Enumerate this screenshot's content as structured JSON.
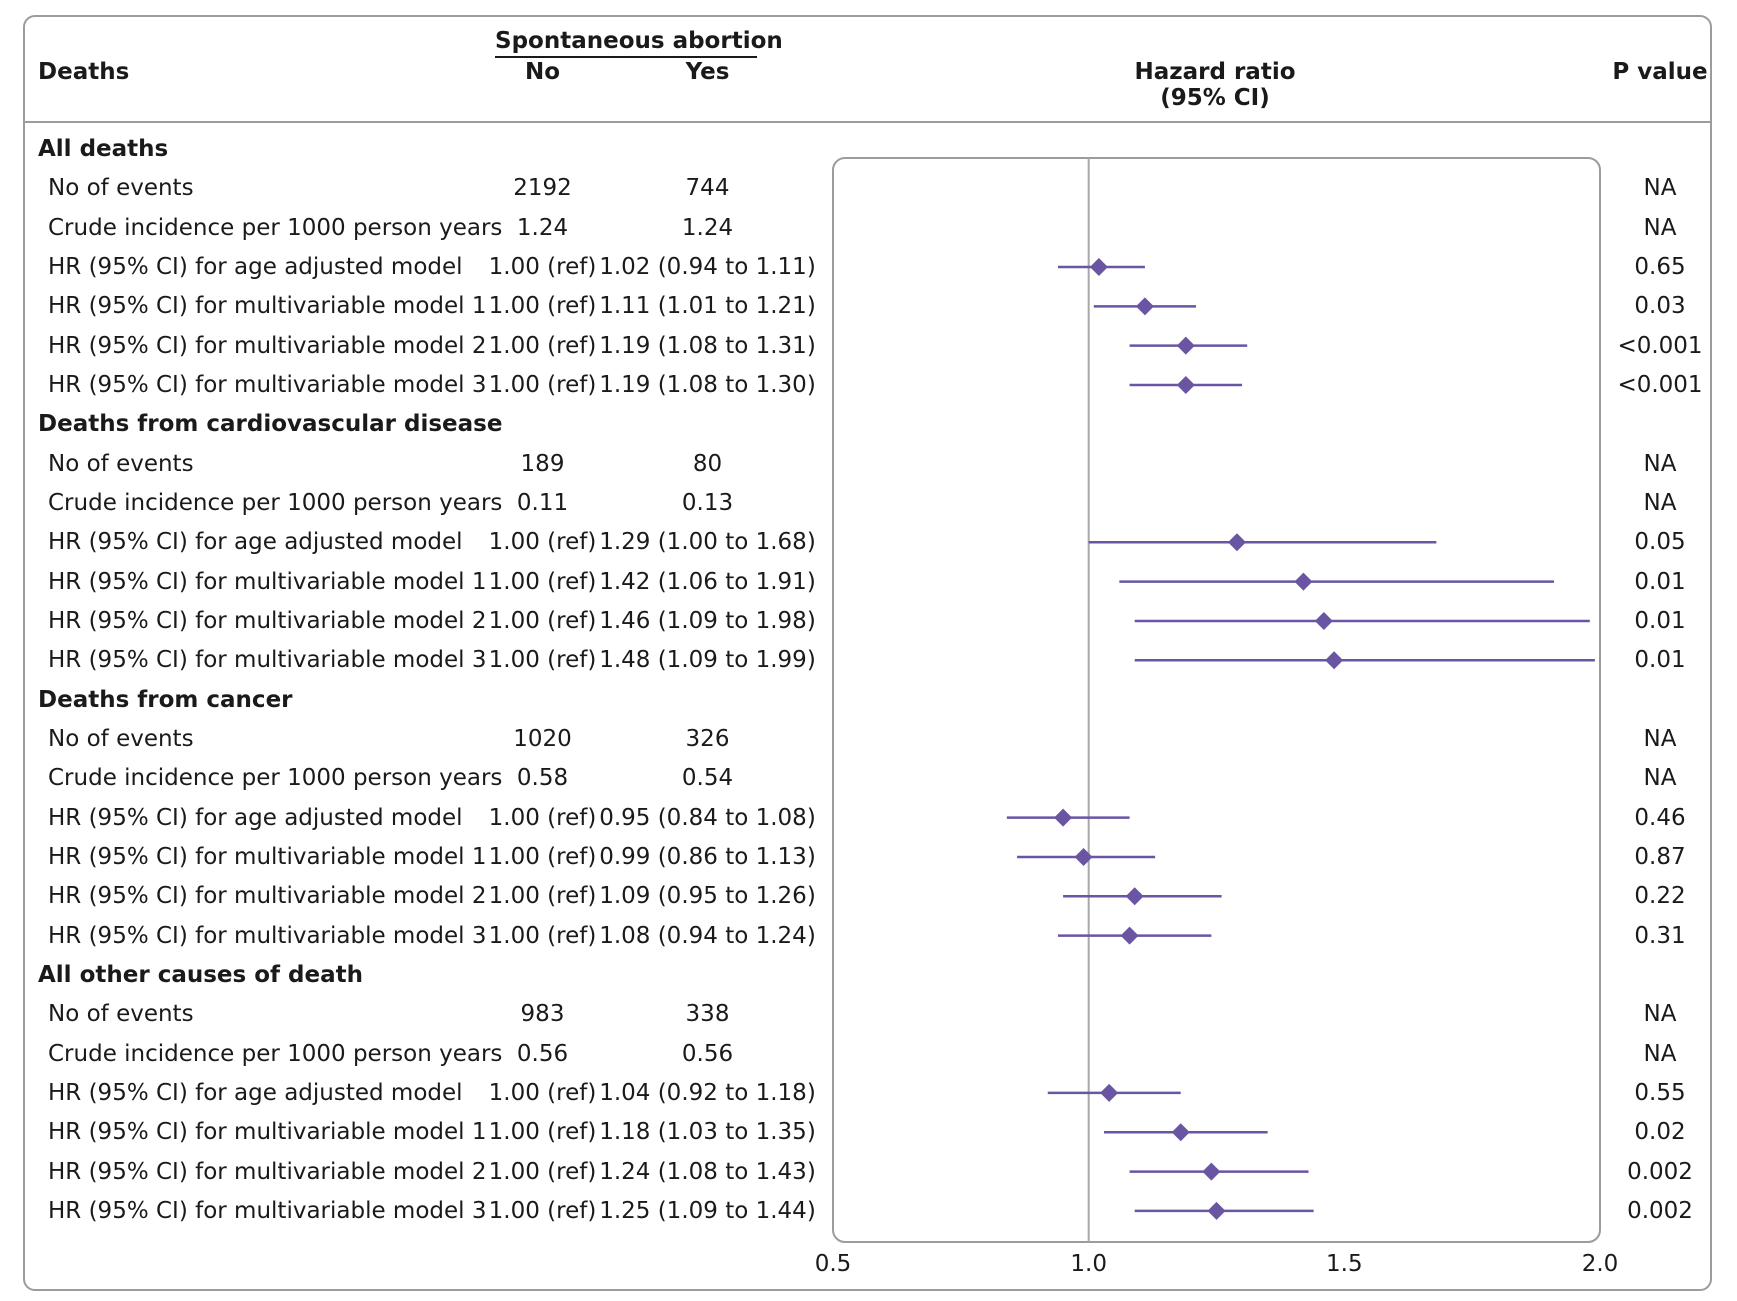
{
  "headers": {
    "deaths": "Deaths",
    "group": "Spontaneous abortion",
    "no": "No",
    "yes": "Yes",
    "hr_line1": "Hazard ratio",
    "hr_line2": "(95% CI)",
    "p_value": "P value"
  },
  "colors": {
    "marker": "#6a55a3",
    "frame": "#9c9c9c",
    "refline": "#a8a8a8"
  },
  "sections": [
    {
      "title": "All deaths",
      "rows": [
        {
          "label": "No of events",
          "no": "2192",
          "yes": "744",
          "p": "NA"
        },
        {
          "label": "Crude incidence per 1000 person years",
          "no": "1.24",
          "yes": "1.24",
          "p": "NA"
        },
        {
          "label": "HR (95% CI) for age adjusted model",
          "no": "1.00 (ref)",
          "yes": "1.02 (0.94 to 1.11)",
          "p": "0.65"
        },
        {
          "label": "HR (95% CI) for multivariable model 1",
          "no": "1.00 (ref)",
          "yes": "1.11 (1.01 to 1.21)",
          "p": "0.03"
        },
        {
          "label": "HR (95% CI) for multivariable model 2",
          "no": "1.00 (ref)",
          "yes": "1.19 (1.08 to 1.31)",
          "p": "<0.001"
        },
        {
          "label": "HR (95% CI) for multivariable model 3",
          "no": "1.00 (ref)",
          "yes": "1.19 (1.08 to 1.30)",
          "p": "<0.001"
        }
      ]
    },
    {
      "title": "Deaths from cardiovascular disease",
      "rows": [
        {
          "label": "No of events",
          "no": "189",
          "yes": "80",
          "p": "NA"
        },
        {
          "label": "Crude incidence per 1000 person years",
          "no": "0.11",
          "yes": "0.13",
          "p": "NA"
        },
        {
          "label": "HR (95% CI) for age adjusted model",
          "no": "1.00 (ref)",
          "yes": "1.29 (1.00 to 1.68)",
          "p": "0.05"
        },
        {
          "label": "HR (95% CI) for multivariable model 1",
          "no": "1.00 (ref)",
          "yes": "1.42 (1.06 to 1.91)",
          "p": "0.01"
        },
        {
          "label": "HR (95% CI) for multivariable model 2",
          "no": "1.00 (ref)",
          "yes": "1.46 (1.09 to 1.98)",
          "p": "0.01"
        },
        {
          "label": "HR (95% CI) for multivariable model 3",
          "no": "1.00 (ref)",
          "yes": "1.48 (1.09 to 1.99)",
          "p": "0.01"
        }
      ]
    },
    {
      "title": "Deaths from cancer",
      "rows": [
        {
          "label": "No of events",
          "no": "1020",
          "yes": "326",
          "p": "NA"
        },
        {
          "label": "Crude incidence per 1000 person years",
          "no": "0.58",
          "yes": "0.54",
          "p": "NA"
        },
        {
          "label": "HR (95% CI) for age adjusted model",
          "no": "1.00 (ref)",
          "yes": "0.95 (0.84 to 1.08)",
          "p": "0.46"
        },
        {
          "label": "HR (95% CI) for multivariable model 1",
          "no": "1.00 (ref)",
          "yes": "0.99 (0.86 to 1.13)",
          "p": "0.87"
        },
        {
          "label": "HR (95% CI) for multivariable model 2",
          "no": "1.00 (ref)",
          "yes": "1.09 (0.95 to 1.26)",
          "p": "0.22"
        },
        {
          "label": "HR (95% CI) for multivariable model 3",
          "no": "1.00 (ref)",
          "yes": "1.08 (0.94 to 1.24)",
          "p": "0.31"
        }
      ]
    },
    {
      "title": "All other causes of death",
      "rows": [
        {
          "label": "No of events",
          "no": "983",
          "yes": "338",
          "p": "NA"
        },
        {
          "label": "Crude incidence per 1000 person years",
          "no": "0.56",
          "yes": "0.56",
          "p": "NA"
        },
        {
          "label": "HR (95% CI) for age adjusted model",
          "no": "1.00 (ref)",
          "yes": "1.04 (0.92 to 1.18)",
          "p": "0.55"
        },
        {
          "label": "HR (95% CI) for multivariable model 1",
          "no": "1.00 (ref)",
          "yes": "1.18 (1.03 to 1.35)",
          "p": "0.02"
        },
        {
          "label": "HR (95% CI) for multivariable model 2",
          "no": "1.00 (ref)",
          "yes": "1.24 (1.08 to 1.43)",
          "p": "0.002"
        },
        {
          "label": "HR (95% CI) for multivariable model 3",
          "no": "1.00 (ref)",
          "yes": "1.25 (1.09 to 1.44)",
          "p": "0.002"
        }
      ]
    }
  ],
  "chart_data": {
    "type": "forest",
    "xlim": [
      0.5,
      2.0
    ],
    "xticks": [
      "0.5",
      "1.0",
      "1.5",
      "2.0"
    ],
    "reference_line": 1.0,
    "grid": false,
    "points": [
      {
        "section": "All deaths",
        "model": "HR (95% CI) for age adjusted model",
        "hr": 1.02,
        "lo": 0.94,
        "hi": 1.11
      },
      {
        "section": "All deaths",
        "model": "HR (95% CI) for multivariable model 1",
        "hr": 1.11,
        "lo": 1.01,
        "hi": 1.21
      },
      {
        "section": "All deaths",
        "model": "HR (95% CI) for multivariable model 2",
        "hr": 1.19,
        "lo": 1.08,
        "hi": 1.31
      },
      {
        "section": "All deaths",
        "model": "HR (95% CI) for multivariable model 3",
        "hr": 1.19,
        "lo": 1.08,
        "hi": 1.3
      },
      {
        "section": "Deaths from cardiovascular disease",
        "model": "HR (95% CI) for age adjusted model",
        "hr": 1.29,
        "lo": 1.0,
        "hi": 1.68
      },
      {
        "section": "Deaths from cardiovascular disease",
        "model": "HR (95% CI) for multivariable model 1",
        "hr": 1.42,
        "lo": 1.06,
        "hi": 1.91
      },
      {
        "section": "Deaths from cardiovascular disease",
        "model": "HR (95% CI) for multivariable model 2",
        "hr": 1.46,
        "lo": 1.09,
        "hi": 1.98
      },
      {
        "section": "Deaths from cardiovascular disease",
        "model": "HR (95% CI) for multivariable model 3",
        "hr": 1.48,
        "lo": 1.09,
        "hi": 1.99
      },
      {
        "section": "Deaths from cancer",
        "model": "HR (95% CI) for age adjusted model",
        "hr": 0.95,
        "lo": 0.84,
        "hi": 1.08
      },
      {
        "section": "Deaths from cancer",
        "model": "HR (95% CI) for multivariable model 1",
        "hr": 0.99,
        "lo": 0.86,
        "hi": 1.13
      },
      {
        "section": "Deaths from cancer",
        "model": "HR (95% CI) for multivariable model 2",
        "hr": 1.09,
        "lo": 0.95,
        "hi": 1.26
      },
      {
        "section": "Deaths from cancer",
        "model": "HR (95% CI) for multivariable model 3",
        "hr": 1.08,
        "lo": 0.94,
        "hi": 1.24
      },
      {
        "section": "All other causes of death",
        "model": "HR (95% CI) for age adjusted model",
        "hr": 1.04,
        "lo": 0.92,
        "hi": 1.18
      },
      {
        "section": "All other causes of death",
        "model": "HR (95% CI) for multivariable model 1",
        "hr": 1.18,
        "lo": 1.03,
        "hi": 1.35
      },
      {
        "section": "All other causes of death",
        "model": "HR (95% CI) for multivariable model 2",
        "hr": 1.24,
        "lo": 1.08,
        "hi": 1.43
      },
      {
        "section": "All other causes of death",
        "model": "HR (95% CI) for multivariable model 3",
        "hr": 1.25,
        "lo": 1.09,
        "hi": 1.44
      }
    ]
  }
}
